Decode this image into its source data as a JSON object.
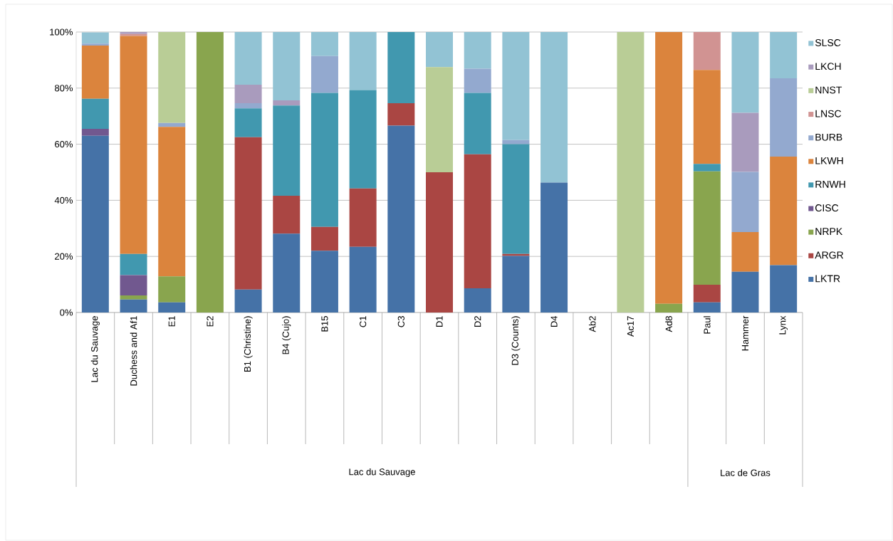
{
  "chart_data": {
    "type": "bar",
    "stacked": true,
    "categories": [
      "Lac du Sauvage",
      "Duchess and Af1",
      "E1",
      "E2",
      "B1 (Christine)",
      "B4 (Cujo)",
      "B15",
      "C1",
      "C3",
      "D1",
      "D2",
      "D3 (Counts)",
      "D4",
      "Ab2",
      "Ac17",
      "Ad8",
      "Paul",
      "Hammer",
      "Lynx"
    ],
    "series": [
      {
        "name": "LKTR",
        "color": "#4572a7",
        "values": [
          63,
          4.6,
          3.6,
          0,
          8.2,
          28.1,
          22,
          23.4,
          66.6,
          0,
          8.6,
          20.2,
          46.3,
          0,
          0,
          0,
          3.6,
          14.5,
          16.9
        ]
      },
      {
        "name": "ARGR",
        "color": "#aa4643",
        "values": [
          0,
          0,
          0,
          0,
          54.3,
          13.5,
          8.5,
          20.8,
          8,
          50,
          47.8,
          0.7,
          0,
          0,
          0,
          0,
          6.3,
          0,
          0
        ]
      },
      {
        "name": "NRPK",
        "color": "#89a54e",
        "values": [
          0,
          1.5,
          9.3,
          100,
          0,
          0,
          0,
          0,
          0,
          0,
          0,
          0,
          0,
          0,
          0,
          3.1,
          40.4,
          0,
          0
        ]
      },
      {
        "name": "CISC",
        "color": "#71588f",
        "values": [
          2.5,
          7.2,
          0,
          0,
          0,
          0,
          0,
          0,
          0,
          0,
          0,
          0,
          0,
          0,
          0,
          0,
          0,
          0,
          0
        ]
      },
      {
        "name": "RNWH",
        "color": "#4198af",
        "values": [
          10.7,
          7.6,
          0,
          0,
          10.3,
          32.2,
          47.8,
          35.1,
          25.4,
          0,
          21.9,
          39.1,
          0,
          0,
          0,
          0,
          2.7,
          0,
          0
        ]
      },
      {
        "name": "LKWH",
        "color": "#db843d",
        "values": [
          19,
          77.7,
          53.3,
          0,
          0,
          0,
          0,
          0,
          0,
          0,
          0,
          0,
          0,
          0,
          0,
          96.9,
          33.5,
          14.2,
          38.7
        ]
      },
      {
        "name": "BURB",
        "color": "#93a9cf",
        "values": [
          0.7,
          0,
          1.4,
          0,
          1.8,
          0,
          13.1,
          0,
          0,
          0,
          8.6,
          1.5,
          0,
          0,
          0,
          0,
          0,
          21.4,
          27.9
        ]
      },
      {
        "name": "LNSC",
        "color": "#d19392",
        "values": [
          0,
          0.7,
          0,
          0,
          0,
          0,
          0,
          0,
          0,
          0,
          0,
          0,
          0,
          0,
          0,
          0,
          13.5,
          0,
          0
        ]
      },
      {
        "name": "NNST",
        "color": "#b9cd96",
        "values": [
          0,
          0,
          32.4,
          0,
          0,
          0,
          0,
          0,
          0,
          37.5,
          0,
          0,
          0,
          0,
          100,
          0,
          0,
          0,
          0
        ]
      },
      {
        "name": "LKCH",
        "color": "#a99bbd",
        "values": [
          0,
          0.7,
          0,
          0,
          6.6,
          1.8,
          0,
          0,
          0,
          0,
          0,
          0,
          0,
          0,
          0,
          0,
          0,
          21.1,
          0
        ]
      },
      {
        "name": "SLSC",
        "color": "#92c3d4",
        "values": [
          4,
          0,
          0,
          0,
          18.8,
          24.4,
          8.6,
          20.7,
          0,
          12.5,
          13.1,
          38.5,
          53.7,
          0,
          0,
          0,
          0,
          28.8,
          16.5
        ]
      }
    ],
    "ylim": [
      0,
      100
    ],
    "yticks": [
      {
        "value": 0,
        "label": "0%"
      },
      {
        "value": 20,
        "label": "20%"
      },
      {
        "value": 40,
        "label": "40%"
      },
      {
        "value": 60,
        "label": "60%"
      },
      {
        "value": 80,
        "label": "80%"
      },
      {
        "value": 100,
        "label": "100%"
      }
    ],
    "grid": "y",
    "legend": "right",
    "annotations": [
      "Lac du Sauvage",
      "Lac de Gras"
    ]
  }
}
